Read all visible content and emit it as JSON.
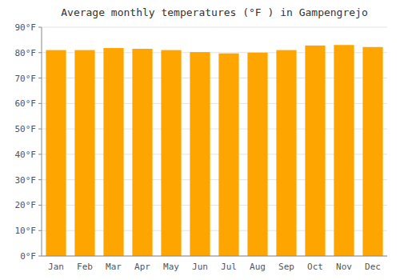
{
  "chart_data": {
    "type": "bar",
    "title": "Average monthly temperatures (°F ) in Gampengrejo",
    "categories": [
      "Jan",
      "Feb",
      "Mar",
      "Apr",
      "May",
      "Jun",
      "Jul",
      "Aug",
      "Sep",
      "Oct",
      "Nov",
      "Dec"
    ],
    "values": [
      81.0,
      81.0,
      81.8,
      81.5,
      81.0,
      80.2,
      79.7,
      80.0,
      81.0,
      82.8,
      83.0,
      82.2
    ],
    "color": "#FFA500",
    "ylim": [
      0,
      90
    ],
    "yticks": [
      {
        "value": 0,
        "label": "0°F"
      },
      {
        "value": 10,
        "label": "10°F"
      },
      {
        "value": 20,
        "label": "20°F"
      },
      {
        "value": 30,
        "label": "30°F"
      },
      {
        "value": 40,
        "label": "40°F"
      },
      {
        "value": 50,
        "label": "50°F"
      },
      {
        "value": 60,
        "label": "60°F"
      },
      {
        "value": 70,
        "label": "70°F"
      },
      {
        "value": 80,
        "label": "80°F"
      },
      {
        "value": 90,
        "label": "90°F"
      }
    ],
    "grid": true
  }
}
